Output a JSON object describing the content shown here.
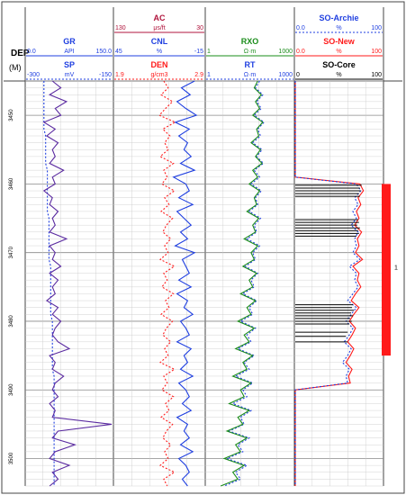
{
  "depth_header": {
    "label": "DEP",
    "unit": "(M)"
  },
  "colors": {
    "blue": "#1f3fe0",
    "purple": "#5a2aa0",
    "red": "#ff1a1a",
    "darkred": "#b0143c",
    "green": "#1a8c1a",
    "black": "#000000",
    "grid": "#c8c8c8",
    "track_border": "#444444"
  },
  "tracks": [
    {
      "id": "gr_sp",
      "curves": [
        {
          "name": "GR",
          "unit": "API",
          "min": "0.0",
          "max": "150.0",
          "color": "#1f3fe0",
          "style": "solid"
        },
        {
          "name": "SP",
          "unit": "mV",
          "min": "-300",
          "max": "-150",
          "color": "#1f3fe0",
          "style": "dashed"
        }
      ]
    },
    {
      "id": "ac_cnl_den",
      "curves": [
        {
          "name": "AC",
          "unit": "μs/ft",
          "min": "130",
          "max": "30",
          "color": "#b0143c",
          "style": "solid"
        },
        {
          "name": "CNL",
          "unit": "%",
          "min": "45",
          "max": "-15",
          "color": "#1f3fe0",
          "style": "solid"
        },
        {
          "name": "DEN",
          "unit": "g/cm3",
          "min": "1.9",
          "max": "2.9",
          "color": "#ff1a1a",
          "style": "dashed"
        }
      ]
    },
    {
      "id": "rxo_rt",
      "curves": [
        {
          "name": "RXO",
          "unit": "Ω·m",
          "min": "1",
          "max": "1000",
          "color": "#1a8c1a",
          "style": "solid"
        },
        {
          "name": "RT",
          "unit": "Ω·m",
          "min": "1",
          "max": "1000",
          "color": "#1f3fe0",
          "style": "dashed"
        }
      ]
    },
    {
      "id": "saturation",
      "curves": [
        {
          "name": "SO-Archie",
          "unit": "%",
          "min": "0.0",
          "max": "100",
          "color": "#1f3fe0",
          "style": "dashed"
        },
        {
          "name": "SO-New",
          "unit": "%",
          "min": "0.0",
          "max": "100",
          "color": "#ff1a1a",
          "style": "solid"
        },
        {
          "name": "SO-Core",
          "unit": "%",
          "min": "0",
          "max": "100",
          "color": "#000000",
          "style": "solid"
        }
      ]
    }
  ],
  "chart_data": {
    "type": "line",
    "depth_ticks": [
      "3450",
      "3460",
      "3470",
      "3480",
      "3490",
      "3500"
    ],
    "depth_range": [
      3445,
      3504
    ],
    "interval_label": "1",
    "interval_depth": [
      3460,
      3485
    ],
    "series": [
      {
        "name": "GR",
        "x": [
          18,
          24,
          16,
          28,
          20,
          24,
          12,
          20,
          14,
          22,
          18,
          20,
          16,
          26,
          18,
          20,
          12,
          18,
          16,
          22,
          18,
          20,
          16,
          28,
          16,
          20,
          18,
          24,
          16,
          22,
          18,
          20,
          14,
          22,
          18,
          24,
          20,
          18,
          22,
          30,
          16,
          20,
          18,
          26,
          20,
          18,
          22,
          16,
          20,
          18,
          60,
          22,
          18,
          34,
          20,
          16,
          30,
          18,
          22,
          16
        ],
        "y_step": 1
      },
      {
        "name": "SP",
        "x": [
          10,
          10,
          10,
          10,
          10,
          10,
          10,
          10,
          11,
          11,
          11,
          11,
          11,
          12,
          12,
          12,
          12,
          12,
          12,
          12,
          13,
          13,
          13,
          13,
          13,
          13,
          13,
          14,
          14,
          14,
          14,
          14,
          14,
          14,
          14,
          15,
          15,
          15,
          15,
          15,
          15,
          15,
          15,
          16,
          16,
          16,
          16,
          16,
          16,
          16,
          16,
          16,
          16,
          16,
          16,
          16,
          16,
          16,
          16,
          16
        ]
      },
      {
        "name": "AC",
        "x": [
          40,
          55,
          45,
          60,
          50,
          38,
          62,
          46,
          58,
          48,
          52,
          44,
          56,
          40,
          64,
          50,
          46,
          58,
          42,
          60,
          52,
          44,
          56,
          48,
          62,
          40,
          54,
          50,
          46,
          58,
          44,
          60,
          48,
          52,
          42,
          56,
          50,
          46,
          60,
          44,
          52,
          48,
          56,
          42,
          58,
          50,
          46,
          54,
          44,
          60,
          48,
          52,
          46,
          56,
          42,
          58,
          50,
          46,
          54,
          48
        ]
      },
      {
        "name": "CNL",
        "x": [
          20,
          16,
          18,
          22,
          17,
          19,
          21,
          16,
          18,
          20,
          17,
          19,
          22,
          16,
          18,
          21,
          17,
          20,
          18,
          23,
          16,
          19,
          21,
          17,
          20,
          18,
          22,
          16,
          19,
          21,
          17,
          20,
          18,
          22,
          16,
          19,
          21,
          17,
          20,
          18,
          22,
          16,
          19,
          21,
          17,
          20,
          18,
          22,
          16,
          19,
          21,
          17,
          20,
          18,
          22,
          16,
          19,
          21,
          17,
          20
        ]
      },
      {
        "name": "DEN",
        "x": [
          2.45,
          2.5,
          2.42,
          2.55,
          2.47,
          2.4,
          2.58,
          2.44,
          2.52,
          2.46,
          2.5,
          2.41,
          2.56,
          2.45,
          2.49,
          2.43,
          2.57,
          2.46,
          2.51,
          2.42,
          2.55,
          2.48,
          2.44,
          2.53,
          2.46,
          2.5,
          2.41,
          2.57,
          2.45,
          2.49,
          2.43,
          2.56,
          2.47,
          2.51,
          2.42,
          2.55,
          2.48,
          2.44,
          2.53,
          2.46,
          2.5,
          2.41,
          2.57,
          2.45,
          2.49,
          2.43,
          2.56,
          2.47,
          2.51,
          2.42,
          2.55,
          2.48,
          2.44,
          2.53,
          2.46,
          2.5,
          2.41,
          2.57,
          2.45,
          2.49
        ]
      },
      {
        "name": "RXO",
        "x": [
          60,
          45,
          80,
          50,
          70,
          40,
          90,
          55,
          65,
          35,
          75,
          50,
          85,
          40,
          60,
          30,
          70,
          45,
          55,
          25,
          65,
          40,
          50,
          20,
          60,
          35,
          45,
          18,
          55,
          30,
          40,
          15,
          50,
          25,
          35,
          12,
          45,
          20,
          30,
          10,
          40,
          18,
          25,
          8,
          35,
          15,
          20,
          6,
          30,
          12,
          18,
          5,
          25,
          10,
          15,
          4,
          20,
          8,
          12,
          3
        ]
      },
      {
        "name": "RT",
        "x": [
          70,
          50,
          90,
          55,
          80,
          45,
          100,
          60,
          75,
          40,
          85,
          55,
          95,
          45,
          70,
          35,
          80,
          50,
          60,
          30,
          75,
          45,
          55,
          25,
          70,
          40,
          50,
          22,
          60,
          35,
          45,
          18,
          55,
          30,
          40,
          15,
          50,
          25,
          35,
          12,
          45,
          20,
          30,
          10,
          40,
          18,
          25,
          8,
          35,
          15,
          20,
          6,
          30,
          12,
          18,
          5,
          25,
          10,
          15,
          4
        ]
      },
      {
        "name": "SO-Archie",
        "x": [
          0,
          0,
          0,
          0,
          0,
          0,
          0,
          0,
          0,
          0,
          0,
          0,
          0,
          0,
          0,
          70,
          75,
          68,
          72,
          66,
          70,
          64,
          72,
          68,
          70,
          66,
          74,
          62,
          70,
          68,
          72,
          66,
          60,
          70,
          64,
          58,
          66,
          62,
          56,
          64,
          60,
          54,
          62,
          58,
          60,
          0,
          0,
          0,
          0,
          0,
          0,
          0,
          0,
          0,
          0,
          0,
          0,
          0,
          0,
          0
        ]
      },
      {
        "name": "SO-New",
        "x": [
          0,
          0,
          0,
          0,
          0,
          0,
          0,
          0,
          0,
          0,
          0,
          0,
          0,
          0,
          0,
          74,
          78,
          72,
          75,
          70,
          73,
          68,
          76,
          71,
          73,
          69,
          77,
          66,
          73,
          71,
          75,
          69,
          64,
          73,
          67,
          62,
          69,
          65,
          60,
          67,
          63,
          58,
          65,
          61,
          63,
          0,
          0,
          0,
          0,
          0,
          0,
          0,
          0,
          0,
          0,
          0,
          0,
          0,
          0,
          0
        ]
      }
    ],
    "so_core_samples": [
      {
        "depth": 3460.2,
        "value": 76
      },
      {
        "depth": 3460.6,
        "value": 74
      },
      {
        "depth": 3461.0,
        "value": 75
      },
      {
        "depth": 3461.4,
        "value": 73
      },
      {
        "depth": 3461.8,
        "value": 74
      },
      {
        "depth": 3465.2,
        "value": 72
      },
      {
        "depth": 3465.6,
        "value": 73
      },
      {
        "depth": 3466.0,
        "value": 71
      },
      {
        "depth": 3466.4,
        "value": 74
      },
      {
        "depth": 3466.8,
        "value": 72
      },
      {
        "depth": 3467.2,
        "value": 73
      },
      {
        "depth": 3467.6,
        "value": 70
      },
      {
        "depth": 3477.6,
        "value": 66
      },
      {
        "depth": 3478.0,
        "value": 65
      },
      {
        "depth": 3478.4,
        "value": 67
      },
      {
        "depth": 3478.8,
        "value": 64
      },
      {
        "depth": 3479.2,
        "value": 66
      },
      {
        "depth": 3479.6,
        "value": 63
      },
      {
        "depth": 3480.0,
        "value": 65
      },
      {
        "depth": 3480.4,
        "value": 62
      },
      {
        "depth": 3481.6,
        "value": 60
      },
      {
        "depth": 3482.2,
        "value": 58
      },
      {
        "depth": 3483.0,
        "value": 60
      }
    ]
  }
}
